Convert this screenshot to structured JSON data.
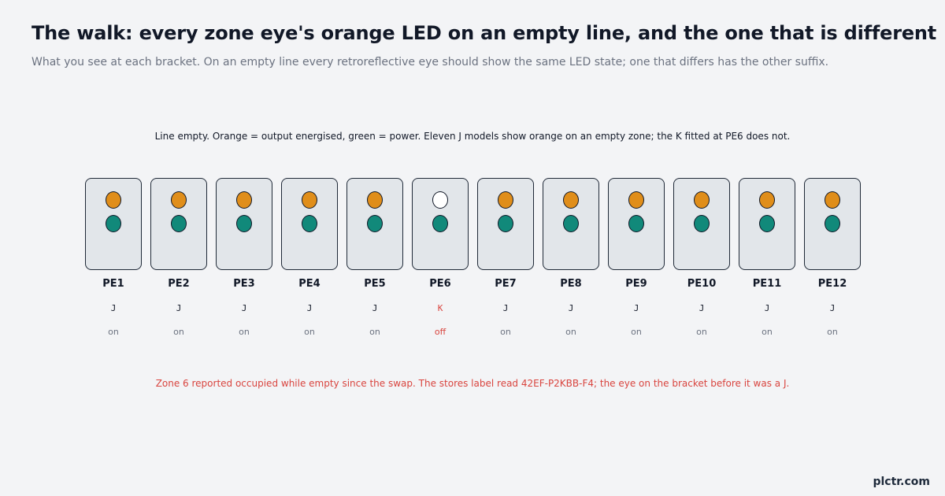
{
  "title": "The walk: every zone eye's orange LED on an empty line, and the one that is different",
  "subtitle": "What you see at each bracket. On an empty line every retroreflective eye should show the same LED state; one that differs has the other suffix.",
  "caption": "Line empty. Orange = output energised, green = power. Eleven J models show orange on an empty zone; the K fitted at PE6 does not.",
  "note": "Zone 6 reported occupied while empty since the swap. The stores label read 42EF-P2KBB-F4; the eye on the bracket before it was a J.",
  "brand": "plctr.com",
  "colors": {
    "orange_on": "#e08e1a",
    "led_off": "#ffffff",
    "green_power": "#11897a",
    "highlight": "#d9443e"
  },
  "sensors": [
    {
      "name": "PE1",
      "model": "J",
      "state": "on",
      "orange_on": true
    },
    {
      "name": "PE2",
      "model": "J",
      "state": "on",
      "orange_on": true
    },
    {
      "name": "PE3",
      "model": "J",
      "state": "on",
      "orange_on": true
    },
    {
      "name": "PE4",
      "model": "J",
      "state": "on",
      "orange_on": true
    },
    {
      "name": "PE5",
      "model": "J",
      "state": "on",
      "orange_on": true
    },
    {
      "name": "PE6",
      "model": "K",
      "state": "off",
      "orange_on": false
    },
    {
      "name": "PE7",
      "model": "J",
      "state": "on",
      "orange_on": true
    },
    {
      "name": "PE8",
      "model": "J",
      "state": "on",
      "orange_on": true
    },
    {
      "name": "PE9",
      "model": "J",
      "state": "on",
      "orange_on": true
    },
    {
      "name": "PE10",
      "model": "J",
      "state": "on",
      "orange_on": true
    },
    {
      "name": "PE11",
      "model": "J",
      "state": "on",
      "orange_on": true
    },
    {
      "name": "PE12",
      "model": "J",
      "state": "on",
      "orange_on": true
    }
  ]
}
